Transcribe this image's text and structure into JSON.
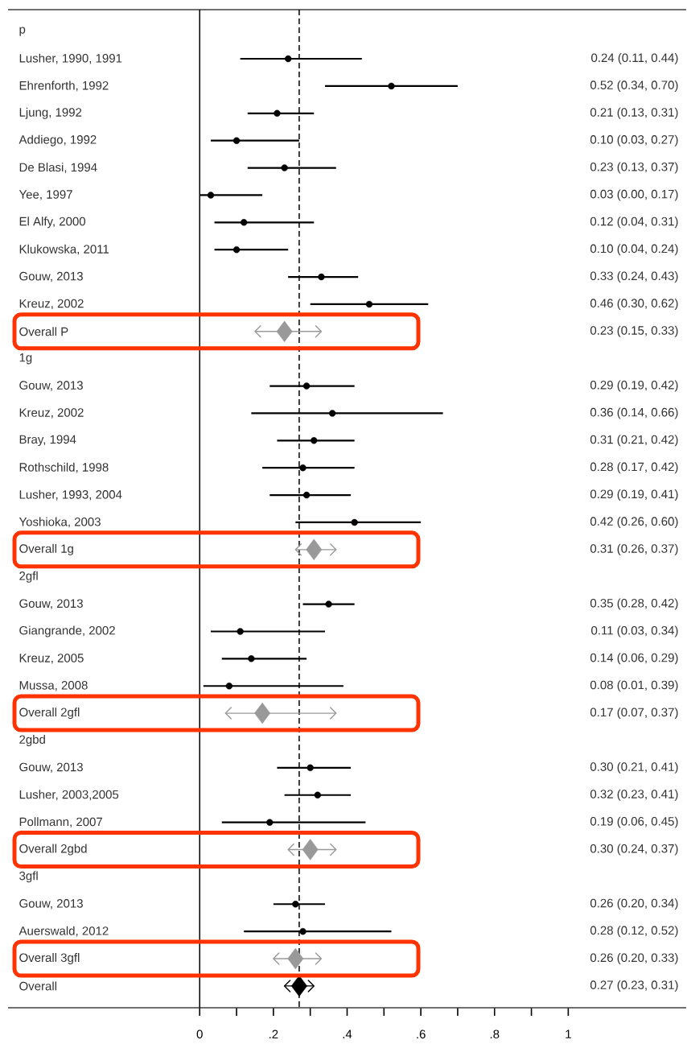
{
  "chart_data": {
    "type": "scatter",
    "orientation": "horizontal",
    "categories": [
      "p",
      "Lusher, 1990, 1991",
      "Ehrenforth, 1992",
      "Ljung, 1992",
      "Addiego, 1992",
      "De Blasi, 1994",
      "Yee, 1997",
      "El Alfy, 2000",
      "Klukowska, 2011",
      "Gouw, 2013",
      "Kreuz, 2002",
      "Overall P",
      "1g",
      "Gouw, 2013",
      "Kreuz, 2002",
      "Bray, 1994",
      "Rothschild, 1998",
      "Lusher, 1993, 2004",
      "Yoshioka, 2003",
      "Overall 1g",
      "2gfl",
      "Gouw, 2013",
      "Giangrande, 2002",
      "Kreuz, 2005",
      "Mussa, 2008",
      "Overall 2gfl",
      "2gbd",
      "Gouw, 2013",
      "Lusher, 2003,2005",
      "Pollmann, 2007",
      "Overall 2gbd",
      "3gfl",
      "Gouw, 2013",
      "Auerswald, 2012",
      "Overall 3gfl",
      "Overall"
    ],
    "series": [
      {
        "type": "scatter",
        "color": "#000000",
        "marker": "circle",
        "values": [
          null,
          0.24,
          0.52,
          0.21,
          0.1,
          0.23,
          0.03,
          0.12,
          0.1,
          0.33,
          0.46,
          null,
          null,
          0.29,
          0.36,
          0.31,
          0.28,
          0.29,
          0.42,
          null,
          null,
          0.35,
          0.11,
          0.14,
          0.08,
          null,
          null,
          0.3,
          0.32,
          0.19,
          null,
          null,
          0.26,
          0.28,
          null,
          null
        ],
        "errors": [
          null,
          [
            0.11,
            0.44
          ],
          [
            0.34,
            0.7
          ],
          [
            0.13,
            0.31
          ],
          [
            0.03,
            0.27
          ],
          [
            0.13,
            0.37
          ],
          [
            0.0,
            0.17
          ],
          [
            0.04,
            0.31
          ],
          [
            0.04,
            0.24
          ],
          [
            0.24,
            0.43
          ],
          [
            0.3,
            0.62
          ],
          null,
          null,
          [
            0.19,
            0.42
          ],
          [
            0.14,
            0.66
          ],
          [
            0.21,
            0.42
          ],
          [
            0.17,
            0.42
          ],
          [
            0.19,
            0.41
          ],
          [
            0.26,
            0.6
          ],
          null,
          null,
          [
            0.28,
            0.42
          ],
          [
            0.03,
            0.34
          ],
          [
            0.06,
            0.29
          ],
          [
            0.01,
            0.39
          ],
          null,
          null,
          [
            0.21,
            0.41
          ],
          [
            0.23,
            0.41
          ],
          [
            0.06,
            0.45
          ],
          null,
          null,
          [
            0.2,
            0.34
          ],
          [
            0.12,
            0.52
          ],
          null,
          null
        ]
      },
      {
        "type": "scatter",
        "color": "#999999",
        "marker": "diamond",
        "values": [
          null,
          null,
          null,
          null,
          null,
          null,
          null,
          null,
          null,
          null,
          null,
          0.23,
          null,
          null,
          null,
          null,
          null,
          null,
          null,
          0.31,
          null,
          null,
          null,
          null,
          null,
          0.17,
          null,
          null,
          null,
          null,
          0.3,
          null,
          null,
          null,
          0.26,
          null
        ],
        "errors": [
          null,
          null,
          null,
          null,
          null,
          null,
          null,
          null,
          null,
          null,
          null,
          [
            0.15,
            0.33
          ],
          null,
          null,
          null,
          null,
          null,
          null,
          null,
          [
            0.26,
            0.37
          ],
          null,
          null,
          null,
          null,
          null,
          [
            0.07,
            0.37
          ],
          null,
          null,
          null,
          null,
          [
            0.24,
            0.37
          ],
          null,
          null,
          null,
          [
            0.2,
            0.33
          ],
          null
        ]
      },
      {
        "type": "scatter",
        "color": "#000000",
        "marker": "diamond",
        "values": [
          null,
          null,
          null,
          null,
          null,
          null,
          null,
          null,
          null,
          null,
          null,
          null,
          null,
          null,
          null,
          null,
          null,
          null,
          null,
          null,
          null,
          null,
          null,
          null,
          null,
          null,
          null,
          null,
          null,
          null,
          null,
          null,
          null,
          null,
          null,
          0.27
        ],
        "errors": [
          null,
          null,
          null,
          null,
          null,
          null,
          null,
          null,
          null,
          null,
          null,
          null,
          null,
          null,
          null,
          null,
          null,
          null,
          null,
          null,
          null,
          null,
          null,
          null,
          null,
          null,
          null,
          null,
          null,
          null,
          null,
          null,
          null,
          null,
          null,
          [
            0.23,
            0.31
          ]
        ]
      }
    ],
    "annotations": [
      "0.24 (0.11, 0.44)",
      "0.52 (0.34, 0.70)",
      "0.21 (0.13, 0.31)",
      "0.10 (0.03, 0.27)",
      "0.23 (0.13, 0.37)",
      "0.03 (0.00, 0.17)",
      "0.12 (0.04, 0.31)",
      "0.10 (0.04, 0.24)",
      "0.33 (0.24, 0.43)",
      "0.46 (0.30, 0.62)",
      "0.23 (0.15, 0.33)",
      "0.29 (0.19, 0.42)",
      "0.36 (0.14, 0.66)",
      "0.31 (0.21, 0.42)",
      "0.28 (0.17, 0.42)",
      "0.29 (0.19, 0.41)",
      "0.42 (0.26, 0.60)",
      "0.31 (0.26, 0.37)",
      "0.35 (0.28, 0.42)",
      "0.11 (0.03, 0.34)",
      "0.14 (0.06, 0.29)",
      "0.08 (0.01, 0.39)",
      "0.17 (0.07, 0.37)",
      "0.30 (0.21, 0.41)",
      "0.32 (0.23, 0.41)",
      "0.19 (0.06, 0.45)",
      "0.30 (0.24, 0.37)",
      "0.26 (0.20, 0.34)",
      "0.28 (0.12, 0.52)",
      "0.26 (0.20, 0.33)",
      "0.27 (0.23, 0.31)"
    ],
    "xlim": [
      -0.52,
      1.32
    ],
    "xticks": [
      0,
      {
        "value": 0.1,
        "label": null
      },
      {
        "value": 0.2,
        "label": ".2"
      },
      {
        "value": 0.3,
        "label": null
      },
      {
        "value": 0.4,
        "label": ".4"
      },
      {
        "value": 0.5,
        "label": null
      },
      {
        "value": 0.6,
        "label": ".6"
      },
      {
        "value": 0.7,
        "label": null
      },
      {
        "value": 0.8,
        "label": ".8"
      },
      {
        "value": 0.9,
        "label": null
      },
      1
    ],
    "ref_lines": [
      {
        "axis": "x",
        "value": 0,
        "line_style": "solid"
      },
      {
        "axis": "x",
        "value": 0.27,
        "line_style": "dashed"
      }
    ]
  }
}
